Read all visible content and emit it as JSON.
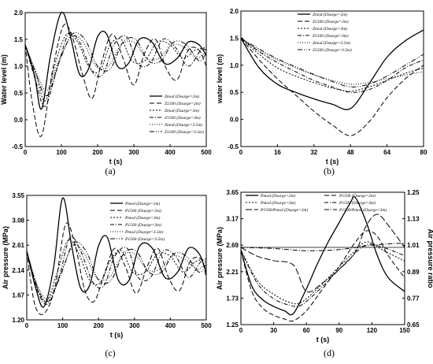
{
  "chart_data": [
    {
      "type": "line",
      "panel_label": "(a)",
      "xlabel": "t (s)",
      "ylabel": "Water level (m)",
      "xlim": [
        0,
        500
      ],
      "ylim": [
        -0.5,
        2.0
      ],
      "xticks": [
        "0",
        "100",
        "200",
        "300",
        "400",
        "500"
      ],
      "yticks": [
        "-0.5",
        "0.0",
        "0.5",
        "1.0",
        "1.5",
        "2.0"
      ],
      "legend_position": "inside-right",
      "series": [
        {
          "name": "Zmod (Dsurge=2m)",
          "dash": "",
          "width": 1.3,
          "x": [
            0,
            25,
            45,
            70,
            100,
            125,
            150,
            175,
            200,
            225,
            255,
            285,
            315,
            350,
            385,
            420,
            450,
            480,
            500
          ],
          "y": [
            1.4,
            0.85,
            0.2,
            1.2,
            2.0,
            1.55,
            0.85,
            0.95,
            1.55,
            1.6,
            1.0,
            1.05,
            1.5,
            1.45,
            1.05,
            1.15,
            1.45,
            1.4,
            1.2
          ]
        },
        {
          "name": "Z1500 (Dsurge=2m)",
          "dash": "6,3",
          "width": 1.0,
          "x": [
            0,
            20,
            45,
            75,
            105,
            130,
            160,
            185,
            210,
            240,
            270,
            300,
            330,
            360,
            390,
            420,
            450,
            480,
            500
          ],
          "y": [
            1.4,
            0.3,
            -0.3,
            0.9,
            1.75,
            1.55,
            0.8,
            0.4,
            1.05,
            1.6,
            1.15,
            0.65,
            1.25,
            1.5,
            0.95,
            0.75,
            1.3,
            1.3,
            1.0
          ]
        },
        {
          "name": "Zmod (Dsurge=3m)",
          "dash": "2,2",
          "width": 1.0,
          "x": [
            0,
            30,
            55,
            85,
            115,
            145,
            175,
            205,
            235,
            265,
            295,
            330,
            365,
            400,
            435,
            470,
            500
          ],
          "y": [
            1.4,
            0.85,
            0.35,
            1.1,
            1.6,
            1.45,
            1.0,
            0.9,
            1.4,
            1.5,
            1.1,
            1.1,
            1.45,
            1.4,
            1.15,
            1.3,
            1.35
          ]
        },
        {
          "name": "Z1500 (Dsurge=3m)",
          "dash": "5,2,1,2",
          "width": 1.0,
          "x": [
            0,
            30,
            55,
            90,
            120,
            150,
            185,
            215,
            245,
            280,
            310,
            345,
            380,
            415,
            450,
            485,
            500
          ],
          "y": [
            1.4,
            0.7,
            0.25,
            1.0,
            1.6,
            1.45,
            0.9,
            0.85,
            1.4,
            1.55,
            1.05,
            1.05,
            1.5,
            1.35,
            1.0,
            1.3,
            1.3
          ]
        },
        {
          "name": "Zmod (Dsurge=3.5m)",
          "dash": "1,2",
          "width": 1.0,
          "x": [
            0,
            30,
            60,
            95,
            130,
            160,
            195,
            230,
            265,
            300,
            335,
            370,
            405,
            440,
            475,
            500
          ],
          "y": [
            1.4,
            0.9,
            0.55,
            1.15,
            1.55,
            1.45,
            1.0,
            1.0,
            1.4,
            1.45,
            1.15,
            1.15,
            1.4,
            1.35,
            1.15,
            1.3
          ]
        },
        {
          "name": "Z1500 (Dsurge=3.5m)",
          "dash": "6,2,1,2,1,2",
          "width": 1.0,
          "x": [
            0,
            30,
            60,
            95,
            130,
            165,
            200,
            235,
            270,
            305,
            340,
            375,
            410,
            445,
            480,
            500
          ],
          "y": [
            1.4,
            0.85,
            0.45,
            1.1,
            1.6,
            1.5,
            1.0,
            0.95,
            1.45,
            1.5,
            1.1,
            1.1,
            1.45,
            1.4,
            1.1,
            1.25
          ]
        }
      ]
    },
    {
      "type": "line",
      "panel_label": "(b)",
      "xlabel": "t (s)",
      "ylabel": "water level (m)",
      "xlim": [
        0,
        80
      ],
      "ylim": [
        -0.5,
        2.0
      ],
      "xticks": [
        "0",
        "16",
        "32",
        "48",
        "64",
        "80"
      ],
      "yticks": [
        "-0.5",
        "0.0",
        "0.5",
        "1.0",
        "1.5",
        "2.0"
      ],
      "legend_position": "top-left",
      "series": [
        {
          "name": "Zmod (Dsurge=2m)",
          "dash": "",
          "width": 1.3,
          "x": [
            0,
            8,
            16,
            24,
            32,
            40,
            48,
            56,
            64,
            72,
            80
          ],
          "y": [
            1.5,
            0.95,
            0.65,
            0.5,
            0.38,
            0.28,
            0.2,
            0.65,
            1.15,
            1.45,
            1.65
          ]
        },
        {
          "name": "Z1500 (Dsurge=2m)",
          "dash": "6,3",
          "width": 1.0,
          "x": [
            0,
            8,
            16,
            24,
            32,
            40,
            48,
            56,
            64,
            72,
            80
          ],
          "y": [
            1.5,
            1.1,
            0.75,
            0.45,
            0.15,
            -0.1,
            -0.3,
            -0.05,
            0.4,
            0.75,
            1.0
          ]
        },
        {
          "name": "Zmod (Dsurge=3m)",
          "dash": "2,2",
          "width": 1.0,
          "x": [
            0,
            8,
            16,
            24,
            32,
            40,
            48,
            56,
            64,
            72,
            80
          ],
          "y": [
            1.5,
            1.2,
            0.95,
            0.8,
            0.68,
            0.58,
            0.52,
            0.6,
            0.72,
            0.85,
            0.95
          ]
        },
        {
          "name": "Z1500 (Dsurge=3m)",
          "dash": "5,2,1,2",
          "width": 1.0,
          "x": [
            0,
            8,
            16,
            24,
            32,
            40,
            48,
            56,
            64,
            72,
            80
          ],
          "y": [
            1.5,
            1.25,
            1.05,
            0.88,
            0.72,
            0.6,
            0.5,
            0.55,
            0.72,
            0.95,
            1.1
          ]
        },
        {
          "name": "Zmod (Dsurge=3.5m)",
          "dash": "1,2",
          "width": 1.0,
          "x": [
            0,
            8,
            16,
            24,
            32,
            40,
            48,
            56,
            64,
            72,
            80
          ],
          "y": [
            1.5,
            1.27,
            1.1,
            0.95,
            0.82,
            0.72,
            0.65,
            0.68,
            0.75,
            0.82,
            0.88
          ]
        },
        {
          "name": "Z1500 (Dsurge=3.5m)",
          "dash": "6,2,1,2,1,2",
          "width": 1.0,
          "x": [
            0,
            8,
            16,
            24,
            32,
            40,
            48,
            56,
            64,
            72,
            80
          ],
          "y": [
            1.5,
            1.3,
            1.12,
            0.97,
            0.83,
            0.7,
            0.6,
            0.65,
            0.8,
            1.0,
            1.2
          ]
        }
      ]
    },
    {
      "type": "line",
      "panel_label": "(c)",
      "xlabel": "t (s)",
      "ylabel": "Air pressure (MPa)",
      "xlim": [
        0,
        500
      ],
      "ylim": [
        1.2,
        3.55
      ],
      "xticks": [
        "0",
        "100",
        "200",
        "300",
        "400",
        "500"
      ],
      "yticks": [
        "1.20",
        "1.67",
        "2.14",
        "2.61",
        "3.08",
        "3.55"
      ],
      "legend_position": "top-right",
      "series": [
        {
          "name": "Pmod (Dsurge=2m)",
          "dash": "",
          "width": 1.3,
          "x": [
            0,
            25,
            48,
            75,
            100,
            125,
            150,
            175,
            200,
            225,
            255,
            285,
            315,
            350,
            385,
            420,
            450,
            480,
            500
          ],
          "y": [
            2.5,
            1.8,
            1.45,
            2.2,
            3.5,
            2.6,
            1.8,
            1.85,
            2.6,
            2.75,
            1.95,
            1.95,
            2.6,
            2.55,
            2.0,
            2.1,
            2.55,
            2.45,
            2.1
          ]
        },
        {
          "name": "P1500 (Dsurge=2m)",
          "dash": "6,3",
          "width": 1.0,
          "x": [
            0,
            22,
            48,
            78,
            108,
            135,
            162,
            188,
            215,
            245,
            275,
            305,
            335,
            365,
            395,
            425,
            455,
            485,
            500
          ],
          "y": [
            2.5,
            1.5,
            1.32,
            1.8,
            3.0,
            2.6,
            1.75,
            1.55,
            2.05,
            2.55,
            2.2,
            1.7,
            2.2,
            2.55,
            2.0,
            1.75,
            2.3,
            2.35,
            2.0
          ]
        },
        {
          "name": "Pmod (Dsurge=3m)",
          "dash": "2,2",
          "width": 1.0,
          "x": [
            0,
            30,
            55,
            85,
            115,
            145,
            175,
            205,
            235,
            265,
            295,
            330,
            365,
            400,
            435,
            470,
            500
          ],
          "y": [
            2.5,
            1.8,
            1.55,
            2.1,
            2.7,
            2.45,
            1.95,
            1.9,
            2.35,
            2.5,
            2.1,
            2.1,
            2.45,
            2.4,
            2.1,
            2.3,
            2.35
          ]
        },
        {
          "name": "P1500 (Dsurge=3m)",
          "dash": "5,2,1,2",
          "width": 1.0,
          "x": [
            0,
            30,
            58,
            90,
            120,
            150,
            185,
            215,
            245,
            280,
            310,
            345,
            380,
            415,
            450,
            485,
            500
          ],
          "y": [
            2.5,
            1.75,
            1.5,
            2.0,
            2.75,
            2.5,
            1.9,
            1.85,
            2.4,
            2.55,
            2.0,
            2.0,
            2.5,
            2.4,
            2.0,
            2.3,
            2.3
          ]
        },
        {
          "name": "Pmod (Dsurge=3.5m)",
          "dash": "1,2",
          "width": 1.0,
          "x": [
            0,
            30,
            60,
            95,
            130,
            160,
            195,
            230,
            265,
            300,
            335,
            370,
            405,
            440,
            475,
            500
          ],
          "y": [
            2.5,
            1.85,
            1.6,
            2.1,
            2.6,
            2.45,
            2.0,
            2.0,
            2.4,
            2.45,
            2.15,
            2.15,
            2.4,
            2.35,
            2.15,
            2.3
          ]
        },
        {
          "name": "P1500 (Dsurge=3.5m)",
          "dash": "6,2,1,2,1,2",
          "width": 1.0,
          "x": [
            0,
            30,
            60,
            95,
            130,
            165,
            200,
            235,
            270,
            305,
            340,
            375,
            410,
            445,
            480,
            500
          ],
          "y": [
            2.5,
            1.8,
            1.55,
            2.05,
            2.65,
            2.5,
            1.95,
            1.95,
            2.45,
            2.5,
            2.1,
            2.1,
            2.45,
            2.4,
            2.1,
            2.25
          ]
        }
      ]
    },
    {
      "type": "line",
      "panel_label": "(d)",
      "xlabel": "t (s)",
      "ylabel": "Air pressure (MPa)",
      "ylabel_right": "Air pressure ratio",
      "xlim": [
        0,
        150
      ],
      "ylim": [
        1.25,
        3.65
      ],
      "ylim_right": [
        0.65,
        1.25
      ],
      "xticks": [
        "0",
        "30",
        "60",
        "90",
        "120",
        "150"
      ],
      "yticks": [
        "1.25",
        "1.73",
        "2.21",
        "2.69",
        "3.17",
        "3.65"
      ],
      "yticks_right": [
        "0.65",
        "0.77",
        "0.89",
        "1.01",
        "1.13",
        "1.25"
      ],
      "legend_position": "top",
      "legend_entries": [
        "Pmod (Dsurge=2m)",
        "P1500 (Dsurge=2m)",
        "Pmod (Dsurge=3m)",
        "P1500 (Dsurge=3m)",
        "P1500/Pmod (Dsurge=2m)",
        "P1500/Pmod (Dsurge=3m)"
      ],
      "series": [
        {
          "name": "Pmod (Dsurge=2m)",
          "dash": "",
          "width": 1.3,
          "axis": "left",
          "x": [
            0,
            10,
            20,
            30,
            40,
            48,
            60,
            70,
            80,
            90,
            100,
            105,
            115,
            125,
            135,
            150
          ],
          "y": [
            2.6,
            1.95,
            1.7,
            1.58,
            1.5,
            1.45,
            1.9,
            2.35,
            2.75,
            3.1,
            3.45,
            3.55,
            3.1,
            2.5,
            2.1,
            1.85
          ]
        },
        {
          "name": "P1500 (Dsurge=2m)",
          "dash": "6,3",
          "width": 1.0,
          "axis": "left",
          "x": [
            0,
            10,
            20,
            30,
            40,
            48,
            60,
            75,
            90,
            105,
            115,
            125,
            135,
            150
          ],
          "y": [
            2.6,
            1.85,
            1.55,
            1.42,
            1.35,
            1.32,
            1.5,
            1.9,
            2.3,
            2.75,
            2.95,
            2.85,
            2.5,
            2.1
          ]
        },
        {
          "name": "Pmod (Dsurge=3m)",
          "dash": "2,2",
          "width": 1.0,
          "axis": "left",
          "x": [
            0,
            15,
            30,
            45,
            55,
            70,
            85,
            100,
            115,
            130,
            150
          ],
          "y": [
            2.6,
            2.05,
            1.8,
            1.65,
            1.65,
            1.9,
            2.2,
            2.5,
            2.75,
            2.6,
            2.4
          ]
        },
        {
          "name": "P1500 (Dsurge=3m)",
          "dash": "5,2,1,2",
          "width": 1.0,
          "axis": "left",
          "x": [
            0,
            15,
            30,
            45,
            55,
            70,
            85,
            100,
            115,
            130,
            150
          ],
          "y": [
            2.6,
            2.0,
            1.72,
            1.6,
            1.6,
            1.85,
            2.15,
            2.45,
            2.7,
            2.65,
            2.5
          ]
        },
        {
          "name": "P1500/Pmod (Dsurge=2m)",
          "dash": "8,3",
          "width": 1.0,
          "axis": "right",
          "x": [
            0,
            15,
            30,
            48,
            60,
            75,
            90,
            105,
            115,
            125,
            135,
            150
          ],
          "y": [
            1.0,
            0.96,
            0.94,
            0.92,
            0.8,
            0.84,
            0.9,
            0.98,
            1.1,
            1.15,
            1.1,
            1.0
          ]
        },
        {
          "name": "P1500/Pmod (Dsurge=3m)",
          "dash": "6,2,1,2",
          "width": 1.0,
          "axis": "right",
          "x": [
            0,
            30,
            60,
            90,
            120,
            150
          ],
          "y": [
            1.0,
            0.995,
            0.985,
            0.99,
            1.01,
            1.02
          ]
        }
      ]
    }
  ]
}
